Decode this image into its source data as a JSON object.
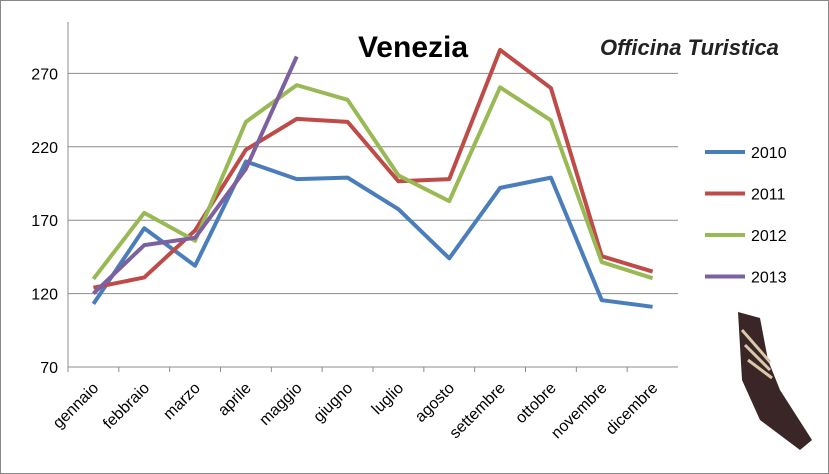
{
  "chart_data": {
    "type": "line",
    "title": "Venezia",
    "categories": [
      "gennaio",
      "febbraio",
      "marzo",
      "aprile",
      "maggio",
      "giugno",
      "luglio",
      "agosto",
      "settembre",
      "ottobre",
      "novembre",
      "dicembre"
    ],
    "series": [
      {
        "name": "2010",
        "color": "#4a7ebb",
        "values": [
          113,
          164.5,
          139,
          210,
          198,
          199,
          177.5,
          144,
          192,
          199,
          115.5,
          111
        ]
      },
      {
        "name": "2011",
        "color": "#be4b48",
        "values": [
          124,
          131,
          163,
          218,
          239,
          237,
          196.5,
          198,
          286,
          260,
          145.5,
          135
        ]
      },
      {
        "name": "2012",
        "color": "#98b954",
        "values": [
          130,
          175,
          156,
          237,
          262,
          252,
          200.5,
          183,
          260.5,
          238,
          141.5,
          130.5
        ]
      },
      {
        "name": "2013",
        "color": "#7d60a0",
        "values": [
          120,
          153,
          158,
          205,
          281.5,
          null,
          null,
          null,
          null,
          null,
          null,
          null
        ]
      }
    ],
    "ylim": [
      70,
      305
    ],
    "yticks": [
      70,
      120,
      170,
      220,
      270
    ],
    "grid": true,
    "legend": "right"
  },
  "logo": "Officina Turistica"
}
